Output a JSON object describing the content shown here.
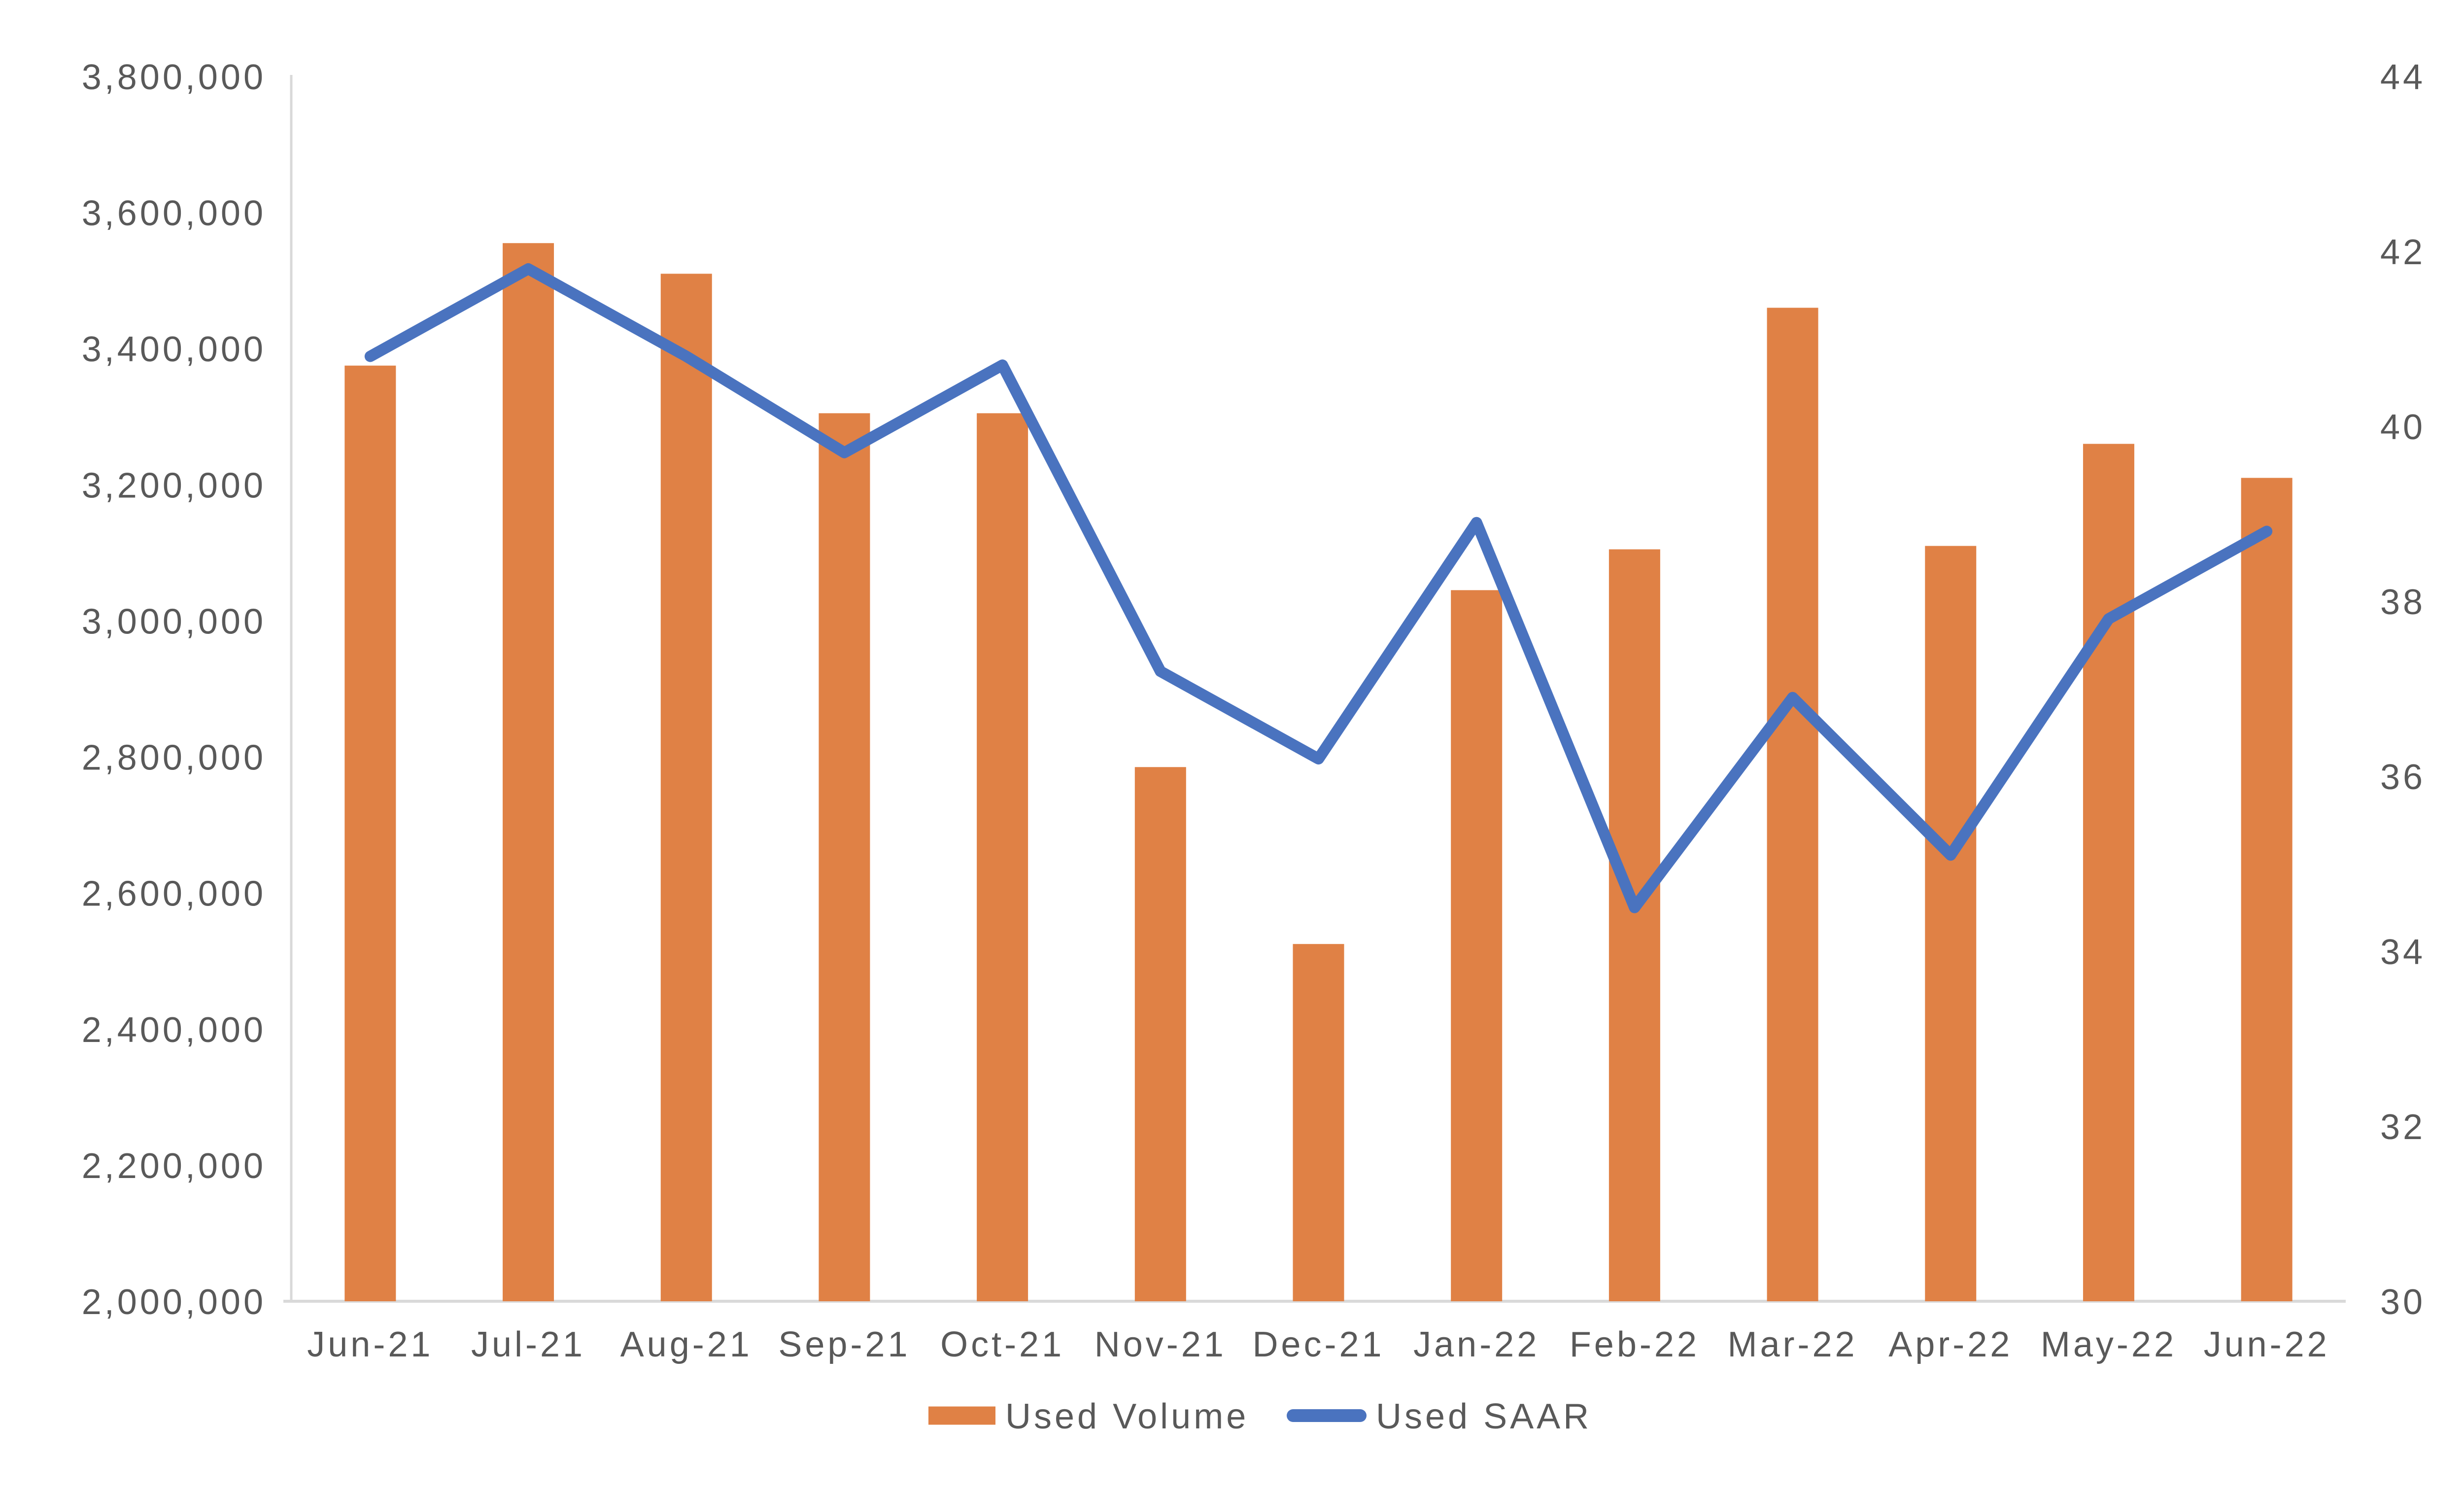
{
  "chart_data": {
    "type": "combo",
    "title": "",
    "xlabel": "",
    "ylabel_left": "",
    "ylabel_right": "",
    "grid": false,
    "legend_position": "bottom-center",
    "categories": [
      "Jun-21",
      "Jul-21",
      "Aug-21",
      "Sep-21",
      "Oct-21",
      "Nov-21",
      "Dec-21",
      "Jan-22",
      "Feb-22",
      "Mar-22",
      "Apr-22",
      "May-22",
      "Jun-22"
    ],
    "series": [
      {
        "name": "Used Volume",
        "type": "bar",
        "axis": "left",
        "color": "#E08145",
        "values": [
          3375000,
          3555000,
          3510000,
          3305000,
          3305000,
          2785000,
          2525000,
          3045000,
          3105000,
          3460000,
          3110000,
          3260000,
          3210000
        ]
      },
      {
        "name": "Used SAAR",
        "type": "line",
        "axis": "right",
        "color": "#4A73BF",
        "values": [
          40.8,
          41.8,
          40.8,
          39.7,
          40.7,
          37.2,
          36.2,
          38.9,
          34.5,
          36.9,
          35.1,
          37.8,
          38.8
        ]
      }
    ],
    "left_axis": {
      "min": 2000000,
      "max": 3800000,
      "step": 200000,
      "tick_labels_top_to_bottom": [
        "3,800,000",
        "3,600,000",
        "3,400,000",
        "3,200,000",
        "3,000,000",
        "2,800,000",
        "2,600,000",
        "2,400,000",
        "2,200,000",
        "2,000,000"
      ]
    },
    "right_axis": {
      "min": 30,
      "max": 44,
      "step": 2,
      "tick_labels_top_to_bottom": [
        "44",
        "42",
        "40",
        "38",
        "36",
        "34",
        "32",
        "30"
      ]
    },
    "colors": {
      "bar": "#E08145",
      "line": "#4A73BF",
      "axis_line": "#D9D9D9",
      "text": "#595959",
      "background": "#FFFFFF"
    }
  }
}
